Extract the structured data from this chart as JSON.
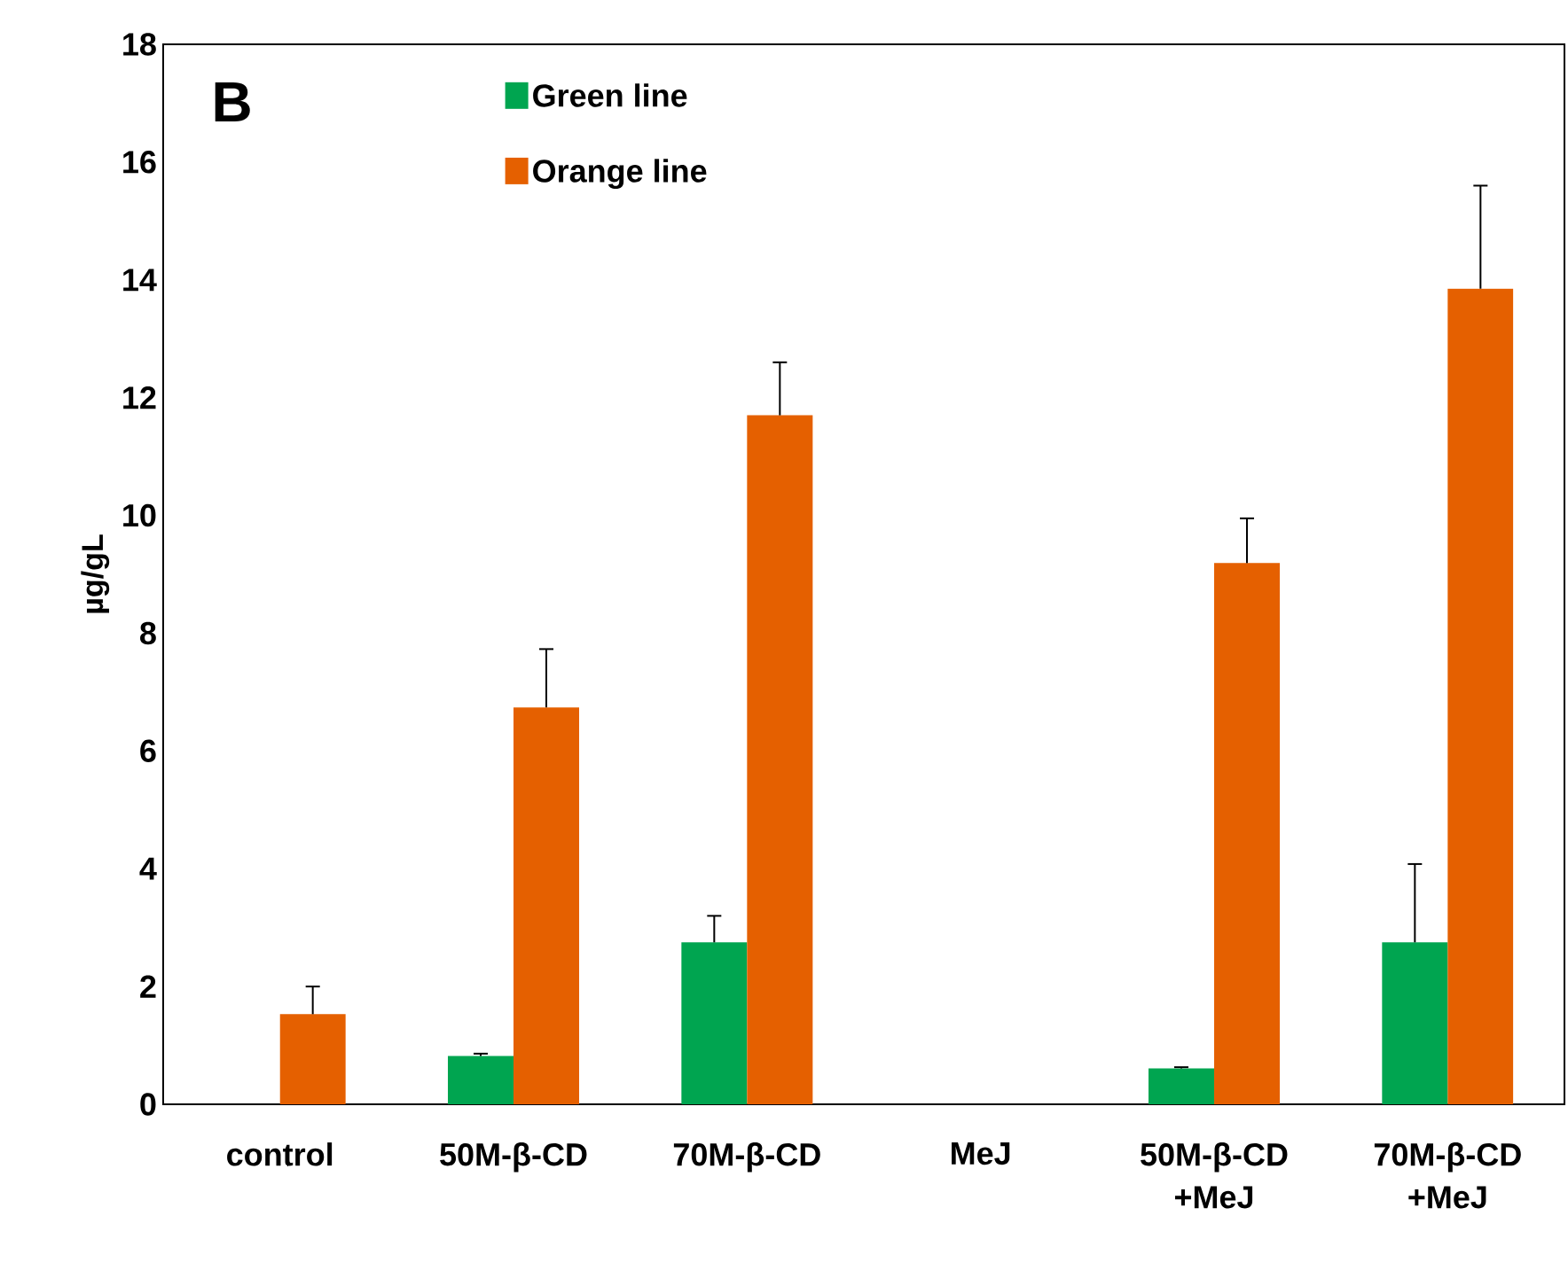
{
  "chart_data": {
    "type": "bar",
    "ylabel": "µg/gL",
    "annotations": [
      "B"
    ],
    "categories": [
      "control",
      "50M-β-CD",
      "70M-β-CD",
      "MeJ",
      "50M-β-CD +MeJ",
      "70M-β-CD +MeJ"
    ],
    "series": [
      {
        "name": "Green line",
        "color": "#00a550",
        "values": [
          0,
          0.82,
          2.75,
          0,
          0.61,
          2.75
        ],
        "errors": [
          null,
          0.04,
          0.45,
          null,
          0.02,
          1.33
        ]
      },
      {
        "name": "Orange line",
        "color": "#e56000",
        "values": [
          1.53,
          6.74,
          11.7,
          0,
          9.19,
          13.85
        ],
        "errors": [
          0.47,
          0.99,
          0.9,
          null,
          0.76,
          1.75
        ]
      }
    ],
    "ylim": [
      0,
      18
    ],
    "yticks": [
      0,
      2,
      4,
      6,
      8,
      10,
      12,
      14,
      16,
      18
    ],
    "legend": "top",
    "grid": false
  }
}
